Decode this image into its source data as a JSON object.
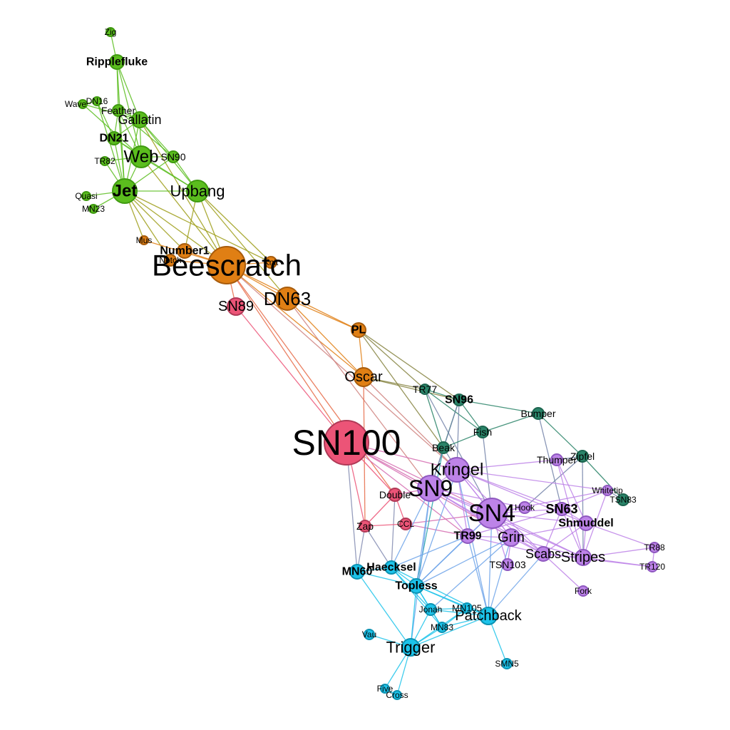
{
  "groups": {
    "green": {
      "fill": "#5bbd1e",
      "stroke": "#3f9a10"
    },
    "orange": {
      "fill": "#e07f14",
      "stroke": "#a85c0c"
    },
    "pink": {
      "fill": "#ec5477",
      "stroke": "#b03a57"
    },
    "teal": {
      "fill": "#2a8469",
      "stroke": "#1d6650"
    },
    "purple": {
      "fill": "#bd83e8",
      "stroke": "#8e58bf"
    },
    "cyan": {
      "fill": "#1cc3ea",
      "stroke": "#0c93b3"
    }
  },
  "nodes": [
    {
      "id": "Zig",
      "group": "green"
    },
    {
      "id": "Ripplefluke",
      "group": "green",
      "bold": true
    },
    {
      "id": "DN16",
      "group": "green"
    },
    {
      "id": "Wave",
      "group": "green"
    },
    {
      "id": "Feather",
      "group": "green"
    },
    {
      "id": "Gallatin",
      "group": "green"
    },
    {
      "id": "DN21",
      "group": "green",
      "bold": true
    },
    {
      "id": "Web",
      "group": "green"
    },
    {
      "id": "SN90",
      "group": "green"
    },
    {
      "id": "TR82",
      "group": "green"
    },
    {
      "id": "Jet",
      "group": "green",
      "bold": true
    },
    {
      "id": "Upbang",
      "group": "green"
    },
    {
      "id": "Quasi",
      "group": "green"
    },
    {
      "id": "MN23",
      "group": "green"
    },
    {
      "id": "Mus",
      "group": "orange"
    },
    {
      "id": "Number1",
      "group": "orange",
      "bold": true
    },
    {
      "id": "Notch",
      "group": "orange"
    },
    {
      "id": "Beescratch",
      "group": "orange"
    },
    {
      "id": "Knit",
      "group": "orange"
    },
    {
      "id": "DN63",
      "group": "orange"
    },
    {
      "id": "PL",
      "group": "orange",
      "bold": true
    },
    {
      "id": "Oscar",
      "group": "orange"
    },
    {
      "id": "SN89",
      "group": "pink"
    },
    {
      "id": "SN100",
      "group": "pink"
    },
    {
      "id": "Double",
      "group": "pink"
    },
    {
      "id": "Zap",
      "group": "pink"
    },
    {
      "id": "CCL",
      "group": "pink"
    },
    {
      "id": "TR77",
      "group": "teal"
    },
    {
      "id": "SN96",
      "group": "teal",
      "bold": true
    },
    {
      "id": "Bumper",
      "group": "teal"
    },
    {
      "id": "Fish",
      "group": "teal"
    },
    {
      "id": "Beak",
      "group": "teal"
    },
    {
      "id": "Zipfel",
      "group": "teal"
    },
    {
      "id": "TSN83",
      "group": "teal"
    },
    {
      "id": "Thumper",
      "group": "purple"
    },
    {
      "id": "Kringel",
      "group": "purple"
    },
    {
      "id": "SN9",
      "group": "purple"
    },
    {
      "id": "Whitetip",
      "group": "purple"
    },
    {
      "id": "Hook",
      "group": "purple"
    },
    {
      "id": "SN4",
      "group": "purple"
    },
    {
      "id": "SN63",
      "group": "purple",
      "bold": true
    },
    {
      "id": "Shmuddel",
      "group": "purple",
      "bold": true
    },
    {
      "id": "TR99",
      "group": "purple",
      "bold": true
    },
    {
      "id": "Grin",
      "group": "purple"
    },
    {
      "id": "Scabs",
      "group": "purple"
    },
    {
      "id": "Stripes",
      "group": "purple"
    },
    {
      "id": "TR88",
      "group": "purple"
    },
    {
      "id": "TR120",
      "group": "purple"
    },
    {
      "id": "TSN103",
      "group": "purple"
    },
    {
      "id": "Fork",
      "group": "purple"
    },
    {
      "id": "Haecksel",
      "group": "cyan",
      "bold": true
    },
    {
      "id": "MN60",
      "group": "cyan",
      "bold": true
    },
    {
      "id": "Topless",
      "group": "cyan",
      "bold": true
    },
    {
      "id": "Jonah",
      "group": "cyan"
    },
    {
      "id": "MN105",
      "group": "cyan"
    },
    {
      "id": "MN83",
      "group": "cyan"
    },
    {
      "id": "Patchback",
      "group": "cyan"
    },
    {
      "id": "Vau",
      "group": "cyan"
    },
    {
      "id": "Trigger",
      "group": "cyan"
    },
    {
      "id": "SMN5",
      "group": "cyan"
    },
    {
      "id": "Five",
      "group": "cyan"
    },
    {
      "id": "Cross",
      "group": "cyan"
    }
  ],
  "edges": [
    [
      "Zig",
      "Ripplefluke"
    ],
    [
      "Ripplefluke",
      "Feather"
    ],
    [
      "Ripplefluke",
      "Gallatin"
    ],
    [
      "Ripplefluke",
      "Web"
    ],
    [
      "Ripplefluke",
      "Jet"
    ],
    [
      "Wave",
      "DN16"
    ],
    [
      "Wave",
      "Gallatin"
    ],
    [
      "Wave",
      "Web"
    ],
    [
      "DN16",
      "DN21"
    ],
    [
      "DN16",
      "Jet"
    ],
    [
      "Feather",
      "Gallatin"
    ],
    [
      "Feather",
      "DN21"
    ],
    [
      "Feather",
      "Web"
    ],
    [
      "Feather",
      "Jet"
    ],
    [
      "Feather",
      "SN90"
    ],
    [
      "Gallatin",
      "DN21"
    ],
    [
      "Gallatin",
      "Web"
    ],
    [
      "Gallatin",
      "Jet"
    ],
    [
      "Gallatin",
      "SN90"
    ],
    [
      "Gallatin",
      "Upbang"
    ],
    [
      "Gallatin",
      "Beescratch"
    ],
    [
      "DN21",
      "Web"
    ],
    [
      "DN21",
      "Jet"
    ],
    [
      "DN21",
      "Upbang"
    ],
    [
      "TR82",
      "Web"
    ],
    [
      "TR82",
      "Jet"
    ],
    [
      "Web",
      "SN90"
    ],
    [
      "Web",
      "Jet"
    ],
    [
      "Web",
      "Upbang"
    ],
    [
      "Web",
      "Beescratch"
    ],
    [
      "SN90",
      "Upbang"
    ],
    [
      "SN90",
      "Jet"
    ],
    [
      "Jet",
      "Quasi"
    ],
    [
      "Jet",
      "MN23"
    ],
    [
      "Jet",
      "Upbang"
    ],
    [
      "Jet",
      "Mus"
    ],
    [
      "Jet",
      "Number1"
    ],
    [
      "Jet",
      "Beescratch"
    ],
    [
      "Jet",
      "Knit"
    ],
    [
      "Jet",
      "Notch"
    ],
    [
      "Upbang",
      "Beescratch"
    ],
    [
      "Upbang",
      "Knit"
    ],
    [
      "Upbang",
      "DN63"
    ],
    [
      "Upbang",
      "Number1"
    ],
    [
      "Mus",
      "Beescratch"
    ],
    [
      "Number1",
      "Beescratch"
    ],
    [
      "Notch",
      "Beescratch"
    ],
    [
      "Knit",
      "Beescratch"
    ],
    [
      "Beescratch",
      "DN63"
    ],
    [
      "Beescratch",
      "SN89"
    ],
    [
      "Beescratch",
      "Oscar"
    ],
    [
      "Beescratch",
      "PL"
    ],
    [
      "Beescratch",
      "SN100"
    ],
    [
      "Beescratch",
      "Double"
    ],
    [
      "Beescratch",
      "Kringel"
    ],
    [
      "DN63",
      "PL"
    ],
    [
      "DN63",
      "Oscar"
    ],
    [
      "DN63",
      "SN9"
    ],
    [
      "PL",
      "Oscar"
    ],
    [
      "PL",
      "TR77"
    ],
    [
      "PL",
      "SN96"
    ],
    [
      "PL",
      "Beak"
    ],
    [
      "Oscar",
      "TR77"
    ],
    [
      "Oscar",
      "SN96"
    ],
    [
      "Oscar",
      "Zap"
    ],
    [
      "Oscar",
      "Kringel"
    ],
    [
      "SN89",
      "SN100"
    ],
    [
      "SN100",
      "SN9"
    ],
    [
      "SN100",
      "Kringel"
    ],
    [
      "SN100",
      "SN4"
    ],
    [
      "SN100",
      "Double"
    ],
    [
      "SN100",
      "Zap"
    ],
    [
      "SN100",
      "MN60"
    ],
    [
      "SN100",
      "TR99"
    ],
    [
      "SN100",
      "Grin"
    ],
    [
      "Double",
      "Zap"
    ],
    [
      "Double",
      "CCL"
    ],
    [
      "Double",
      "SN9"
    ],
    [
      "Double",
      "Haecksel"
    ],
    [
      "Zap",
      "CCL"
    ],
    [
      "Zap",
      "Haecksel"
    ],
    [
      "CCL",
      "SN4"
    ],
    [
      "CCL",
      "TR99"
    ],
    [
      "TR77",
      "SN96"
    ],
    [
      "TR77",
      "Beak"
    ],
    [
      "TR77",
      "Fish"
    ],
    [
      "TR77",
      "SN4"
    ],
    [
      "SN96",
      "Bumper"
    ],
    [
      "SN96",
      "Fish"
    ],
    [
      "SN96",
      "Beak"
    ],
    [
      "SN96",
      "Kringel"
    ],
    [
      "SN96",
      "SN9"
    ],
    [
      "Bumper",
      "Fish"
    ],
    [
      "Bumper",
      "Zipfel"
    ],
    [
      "Bumper",
      "SN63"
    ],
    [
      "Fish",
      "Beak"
    ],
    [
      "Fish",
      "SN4"
    ],
    [
      "Beak",
      "Kringel"
    ],
    [
      "Beak",
      "SN9"
    ],
    [
      "Beak",
      "Topless"
    ],
    [
      "Zipfel",
      "Thumper"
    ],
    [
      "Zipfel",
      "TSN83"
    ],
    [
      "Zipfel",
      "Stripes"
    ],
    [
      "Zipfel",
      "Hook"
    ],
    [
      "Kringel",
      "SN9"
    ],
    [
      "Kringel",
      "SN4"
    ],
    [
      "Kringel",
      "Thumper"
    ],
    [
      "Kringel",
      "SN63"
    ],
    [
      "Kringel",
      "Grin"
    ],
    [
      "Kringel",
      "Scabs"
    ],
    [
      "Kringel",
      "Whitetip"
    ],
    [
      "Kringel",
      "TR99"
    ],
    [
      "Kringel",
      "Shmuddel"
    ],
    [
      "Kringel",
      "Topless"
    ],
    [
      "Kringel",
      "Patchback"
    ],
    [
      "SN9",
      "SN4"
    ],
    [
      "SN9",
      "TR99"
    ],
    [
      "SN9",
      "Grin"
    ],
    [
      "SN9",
      "Scabs"
    ],
    [
      "SN9",
      "Stripes"
    ],
    [
      "SN9",
      "Haecksel"
    ],
    [
      "SN9",
      "Topless"
    ],
    [
      "SN9",
      "Hook"
    ],
    [
      "SN9",
      "Trigger"
    ],
    [
      "SN4",
      "Hook"
    ],
    [
      "SN4",
      "SN63"
    ],
    [
      "SN4",
      "Shmuddel"
    ],
    [
      "SN4",
      "Grin"
    ],
    [
      "SN4",
      "Scabs"
    ],
    [
      "SN4",
      "Stripes"
    ],
    [
      "SN4",
      "TR99"
    ],
    [
      "SN4",
      "TSN103"
    ],
    [
      "SN4",
      "Whitetip"
    ],
    [
      "SN4",
      "Patchback"
    ],
    [
      "SN4",
      "Topless"
    ],
    [
      "SN63",
      "Shmuddel"
    ],
    [
      "SN63",
      "Stripes"
    ],
    [
      "SN63",
      "Scabs"
    ],
    [
      "SN63",
      "Whitetip"
    ],
    [
      "SN63",
      "TR99"
    ],
    [
      "Shmuddel",
      "Stripes"
    ],
    [
      "Shmuddel",
      "Scabs"
    ],
    [
      "Shmuddel",
      "Grin"
    ],
    [
      "Shmuddel",
      "TR88"
    ],
    [
      "Shmuddel",
      "Thumper"
    ],
    [
      "TR99",
      "Grin"
    ],
    [
      "TR99",
      "Scabs"
    ],
    [
      "TR99",
      "Topless"
    ],
    [
      "TR99",
      "Patchback"
    ],
    [
      "TR99",
      "Haecksel"
    ],
    [
      "Grin",
      "Scabs"
    ],
    [
      "Grin",
      "Stripes"
    ],
    [
      "Grin",
      "TSN103"
    ],
    [
      "Grin",
      "Patchback"
    ],
    [
      "Grin",
      "Topless"
    ],
    [
      "Grin",
      "Jonah"
    ],
    [
      "Scabs",
      "Stripes"
    ],
    [
      "Scabs",
      "Fork"
    ],
    [
      "Scabs",
      "TR120"
    ],
    [
      "Scabs",
      "Patchback"
    ],
    [
      "Stripes",
      "TR120"
    ],
    [
      "Stripes",
      "TR88"
    ],
    [
      "Stripes",
      "Whitetip"
    ],
    [
      "TR88",
      "TR120"
    ],
    [
      "Whitetip",
      "TSN83"
    ],
    [
      "Thumper",
      "Stripes"
    ],
    [
      "Haecksel",
      "MN60"
    ],
    [
      "Haecksel",
      "Topless"
    ],
    [
      "Haecksel",
      "Jonah"
    ],
    [
      "Haecksel",
      "MN83"
    ],
    [
      "Haecksel",
      "Patchback"
    ],
    [
      "MN60",
      "Topless"
    ],
    [
      "MN60",
      "Trigger"
    ],
    [
      "MN60",
      "Zap"
    ],
    [
      "Topless",
      "Jonah"
    ],
    [
      "Topless",
      "MN105"
    ],
    [
      "Topless",
      "MN83"
    ],
    [
      "Topless",
      "Patchback"
    ],
    [
      "Topless",
      "Trigger"
    ],
    [
      "Jonah",
      "MN105"
    ],
    [
      "Jonah",
      "MN83"
    ],
    [
      "Jonah",
      "Patchback"
    ],
    [
      "Jonah",
      "Trigger"
    ],
    [
      "MN105",
      "MN83"
    ],
    [
      "MN105",
      "Patchback"
    ],
    [
      "MN105",
      "Trigger"
    ],
    [
      "MN83",
      "Patchback"
    ],
    [
      "MN83",
      "Trigger"
    ],
    [
      "Patchback",
      "Trigger"
    ],
    [
      "Patchback",
      "SMN5"
    ],
    [
      "Vau",
      "Trigger"
    ],
    [
      "Trigger",
      "Five"
    ],
    [
      "Trigger",
      "Cross"
    ],
    [
      "Five",
      "Cross"
    ]
  ]
}
